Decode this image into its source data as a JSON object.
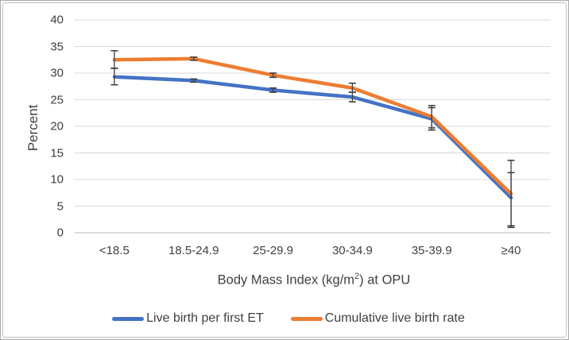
{
  "figure": {
    "y_axis_title": "Percent",
    "x_axis_title": {
      "text": "Body Mass Index (kg/m²) at OPU",
      "prefix": "Body Mass Index (kg/m",
      "superscript": "2",
      "suffix": ") at OPU"
    }
  },
  "chart_data": {
    "type": "line",
    "title": "",
    "xlabel": "Body Mass Index (kg/m²) at OPU",
    "ylabel": "Percent",
    "ylim": [
      0,
      40
    ],
    "y_ticks": [
      0,
      5,
      10,
      15,
      20,
      25,
      30,
      35,
      40
    ],
    "grid": "horizontal",
    "legend_position": "bottom",
    "categories": [
      "<18.5",
      "18.5-24.9",
      "25-29.9",
      "30-34.9",
      "35-39.9",
      "≥40"
    ],
    "series": [
      {
        "name": "Live birth per first ET",
        "color": "#4472C4",
        "values": [
          29.3,
          28.6,
          26.8,
          25.5,
          21.4,
          6.6
        ],
        "error_low": [
          27.8,
          28.3,
          26.4,
          24.6,
          19.3,
          1.0
        ],
        "error_high": [
          30.9,
          28.9,
          27.2,
          26.4,
          23.5,
          11.3
        ]
      },
      {
        "name": "Cumulative live birth rate",
        "color": "#ED7D31",
        "values": [
          32.5,
          32.7,
          29.6,
          27.2,
          21.8,
          7.3
        ],
        "error_low": [
          30.9,
          32.4,
          29.2,
          26.4,
          19.7,
          1.3
        ],
        "error_high": [
          34.2,
          33.0,
          30.0,
          28.1,
          23.9,
          13.6
        ]
      }
    ],
    "style": {
      "gridline_color": "#D9D9D9",
      "axis_line_color": "#BFBFBF",
      "error_bar_color": "#404040",
      "text_color": "#404040"
    }
  }
}
